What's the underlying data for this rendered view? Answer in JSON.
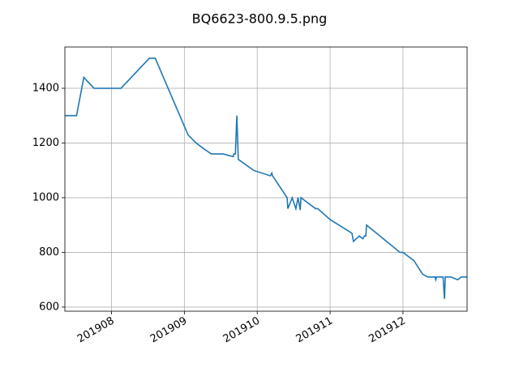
{
  "chart_data": {
    "type": "line",
    "title": "BQ6623-800.9.5.png",
    "x": [
      7.36,
      7.52,
      7.62,
      7.76,
      8.13,
      8.52,
      8.6,
      9.05,
      9.16,
      9.26,
      9.37,
      9.53,
      9.67,
      9.68,
      9.7,
      9.72,
      9.74,
      9.95,
      10.18,
      10.2,
      10.21,
      10.41,
      10.42,
      10.48,
      10.53,
      10.56,
      10.59,
      10.6,
      10.8,
      10.83,
      11.0,
      11.18,
      11.3,
      11.32,
      11.4,
      11.45,
      11.47,
      11.49,
      11.5,
      11.96,
      12.0,
      12.15,
      12.27,
      12.34,
      12.44,
      12.45,
      12.46,
      12.55,
      12.57,
      12.58,
      12.66,
      12.75,
      12.8,
      12.88
    ],
    "series": [
      {
        "color": "#1f77b4",
        "values": [
          1300,
          1300,
          1440,
          1400,
          1400,
          1510,
          1510,
          1230,
          1200,
          1180,
          1160,
          1160,
          1150,
          1160,
          1160,
          1300,
          1140,
          1100,
          1080,
          1090,
          1080,
          1000,
          960,
          1000,
          960,
          1000,
          955,
          1000,
          960,
          960,
          920,
          890,
          870,
          840,
          860,
          850,
          860,
          860,
          900,
          800,
          800,
          770,
          720,
          710,
          710,
          700,
          710,
          710,
          630,
          710,
          710,
          700,
          710,
          710
        ]
      }
    ],
    "xlim": [
      7.36,
      12.88
    ],
    "xticks": [
      {
        "value": 8,
        "label": "201908"
      },
      {
        "value": 9,
        "label": "201909"
      },
      {
        "value": 10,
        "label": "201910"
      },
      {
        "value": 11,
        "label": "201911"
      },
      {
        "value": 12,
        "label": "201912"
      }
    ],
    "ylim": [
      585,
      1551
    ],
    "yticks": [
      600,
      800,
      1000,
      1200,
      1400
    ],
    "grid": true
  }
}
